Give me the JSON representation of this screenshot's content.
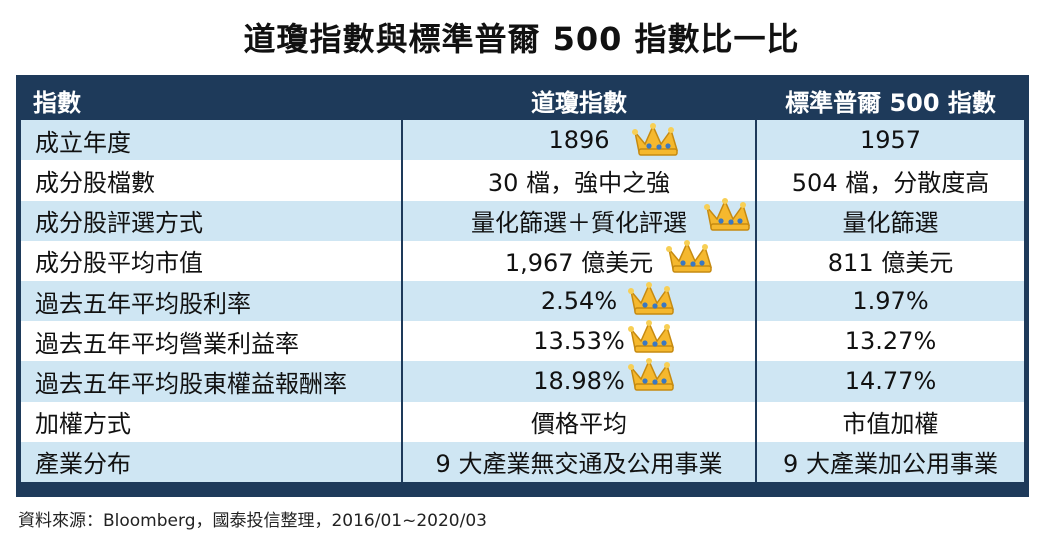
{
  "title": "道瓊指數與標準普爾 500 指數比一比",
  "chart_data": {
    "type": "table",
    "columns": [
      "指數",
      "道瓊指數",
      "標準普爾 500 指數"
    ],
    "rows": [
      {
        "label": "成立年度",
        "dow": "1896",
        "sp": "1957",
        "crown": true
      },
      {
        "label": "成分股檔數",
        "dow": "30 檔，強中之強",
        "sp": "504 檔，分散度高",
        "crown": false
      },
      {
        "label": "成分股評選方式",
        "dow": "量化篩選＋質化評選",
        "sp": "量化篩選",
        "crown": true
      },
      {
        "label": "成分股平均市值",
        "dow": "1,967 億美元",
        "sp": "811 億美元",
        "crown": true
      },
      {
        "label": "過去五年平均股利率",
        "dow": "2.54%",
        "sp": "1.97%",
        "crown": true
      },
      {
        "label": "過去五年平均營業利益率",
        "dow": "13.53%",
        "sp": "13.27%",
        "crown": true
      },
      {
        "label": "過去五年平均股東權益報酬率",
        "dow": "18.98%",
        "sp": "14.77%",
        "crown": true
      },
      {
        "label": "加權方式",
        "dow": "價格平均",
        "sp": "市值加權",
        "crown": false
      },
      {
        "label": "產業分布",
        "dow": "9 大產業無交通及公用事業",
        "sp": "9 大產業加公用事業",
        "crown": false
      }
    ]
  },
  "icons": {
    "crown": "crown-icon"
  },
  "colors": {
    "header": "#1e3a5a",
    "band": "#cfe6f3",
    "crown": "#f5b82e"
  },
  "footnote": "資料來源：Bloomberg，國泰投信整理，2016/01~2020/03"
}
